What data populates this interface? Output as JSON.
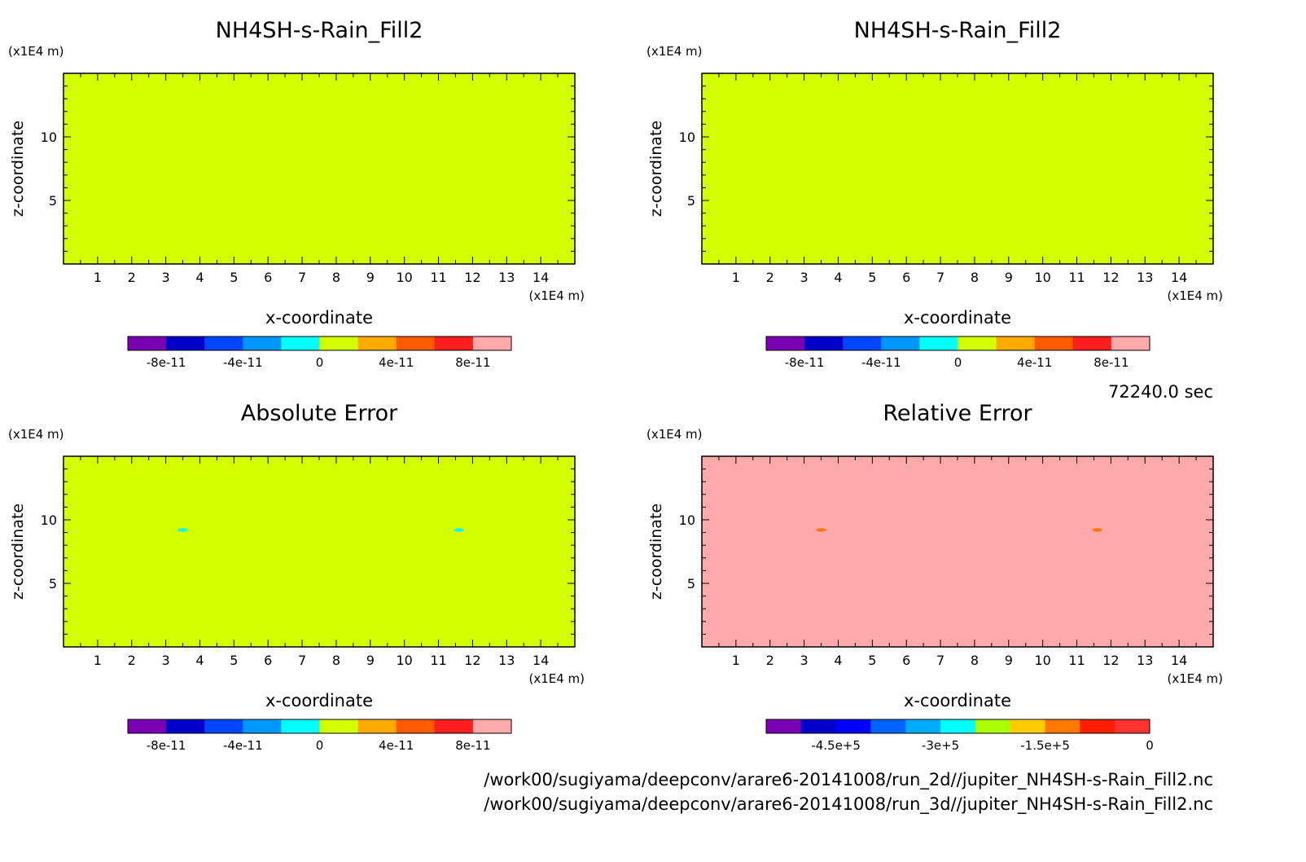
{
  "chart_data": [
    {
      "type": "heatmap",
      "title": "NH4SH-s-Rain_Fill2",
      "xlabel": "x-coordinate",
      "ylabel": "z-coordinate",
      "x_unit": "(x1E4 m)",
      "y_unit": "(x1E4 m)",
      "xlim": [
        0,
        15
      ],
      "ylim": [
        0,
        15
      ],
      "x_ticks": [
        "1",
        "2",
        "3",
        "4",
        "5",
        "6",
        "7",
        "8",
        "9",
        "10",
        "11",
        "12",
        "13",
        "14"
      ],
      "y_ticks": [
        "5",
        "10"
      ],
      "field_color": "#d4ff00",
      "colorbar": {
        "colors": [
          "#7a00b4",
          "#0000c8",
          "#0046ff",
          "#0096ff",
          "#00ffff",
          "#d4ff00",
          "#ffaa00",
          "#ff5a00",
          "#ff1e1e",
          "#ffaaaa"
        ],
        "tick_labels": [
          "-8e-11",
          "-4e-11",
          "0",
          "4e-11",
          "8e-11"
        ],
        "tick_fractions": [
          0.1,
          0.3,
          0.5,
          0.7,
          0.9
        ]
      },
      "features": []
    },
    {
      "type": "heatmap",
      "title": "NH4SH-s-Rain_Fill2",
      "xlabel": "x-coordinate",
      "ylabel": "z-coordinate",
      "x_unit": "(x1E4 m)",
      "y_unit": "(x1E4 m)",
      "xlim": [
        0,
        15
      ],
      "ylim": [
        0,
        15
      ],
      "x_ticks": [
        "1",
        "2",
        "3",
        "4",
        "5",
        "6",
        "7",
        "8",
        "9",
        "10",
        "11",
        "12",
        "13",
        "14"
      ],
      "y_ticks": [
        "5",
        "10"
      ],
      "field_color": "#d4ff00",
      "colorbar": {
        "colors": [
          "#7a00b4",
          "#0000c8",
          "#0046ff",
          "#0096ff",
          "#00ffff",
          "#d4ff00",
          "#ffaa00",
          "#ff5a00",
          "#ff1e1e",
          "#ffaaaa"
        ],
        "tick_labels": [
          "-8e-11",
          "-4e-11",
          "0",
          "4e-11",
          "8e-11"
        ],
        "tick_fractions": [
          0.1,
          0.3,
          0.5,
          0.7,
          0.9
        ]
      },
      "features": []
    },
    {
      "type": "heatmap",
      "title": "Absolute Error",
      "xlabel": "x-coordinate",
      "ylabel": "z-coordinate",
      "x_unit": "(x1E4 m)",
      "y_unit": "(x1E4 m)",
      "xlim": [
        0,
        15
      ],
      "ylim": [
        0,
        15
      ],
      "x_ticks": [
        "1",
        "2",
        "3",
        "4",
        "5",
        "6",
        "7",
        "8",
        "9",
        "10",
        "11",
        "12",
        "13",
        "14"
      ],
      "y_ticks": [
        "5",
        "10"
      ],
      "field_color": "#d4ff00",
      "colorbar": {
        "colors": [
          "#7a00b4",
          "#0000c8",
          "#0046ff",
          "#0096ff",
          "#00ffff",
          "#d4ff00",
          "#ffaa00",
          "#ff5a00",
          "#ff1e1e",
          "#ffaaaa"
        ],
        "tick_labels": [
          "-8e-11",
          "-4e-11",
          "0",
          "4e-11",
          "8e-11"
        ],
        "tick_fractions": [
          0.1,
          0.3,
          0.5,
          0.7,
          0.9
        ]
      },
      "features": [
        {
          "x": 3.5,
          "y": 9.2,
          "color": "#00ffff"
        },
        {
          "x": 11.6,
          "y": 9.2,
          "color": "#00ffff"
        }
      ]
    },
    {
      "type": "heatmap",
      "title": "Relative Error",
      "xlabel": "x-coordinate",
      "ylabel": "z-coordinate",
      "x_unit": "(x1E4 m)",
      "y_unit": "(x1E4 m)",
      "xlim": [
        0,
        15
      ],
      "ylim": [
        0,
        15
      ],
      "x_ticks": [
        "1",
        "2",
        "3",
        "4",
        "5",
        "6",
        "7",
        "8",
        "9",
        "10",
        "11",
        "12",
        "13",
        "14"
      ],
      "y_ticks": [
        "5",
        "10"
      ],
      "field_color": "#ffaaaa",
      "colorbar": {
        "colors": [
          "#7a00b4",
          "#0000c8",
          "#0000ff",
          "#0064ff",
          "#00aaff",
          "#00ffff",
          "#aaff00",
          "#ffcc00",
          "#ff7800",
          "#ff1e00",
          "#ff3232"
        ],
        "tick_labels": [
          "-4.5e+5",
          "-3e+5",
          "-1.5e+5",
          "0"
        ],
        "tick_fractions": [
          0.1818,
          0.4545,
          0.7273,
          1.0
        ]
      },
      "features": [
        {
          "x": 3.5,
          "y": 9.2,
          "color": "#ff7800"
        },
        {
          "x": 11.6,
          "y": 9.2,
          "color": "#ff7800"
        }
      ]
    }
  ],
  "time_label": "72240.0 sec",
  "file_paths": [
    "/work00/sugiyama/deepconv/arare6-20141008/run_2d//jupiter_NH4SH-s-Rain_Fill2.nc",
    "/work00/sugiyama/deepconv/arare6-20141008/run_3d//jupiter_NH4SH-s-Rain_Fill2.nc"
  ]
}
